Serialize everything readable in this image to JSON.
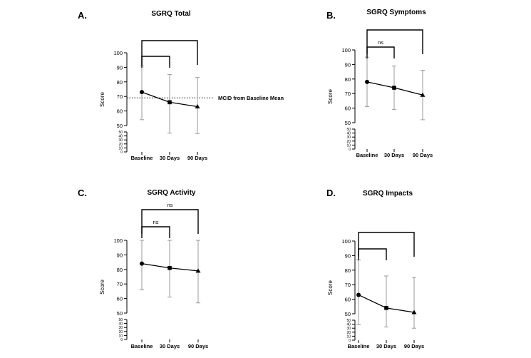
{
  "chart_data": [
    {
      "panel": "A.",
      "type": "line",
      "title": "SGRQ Total",
      "ylabel": "Score",
      "categories": [
        "Baseline",
        "30 Days",
        "90 Days"
      ],
      "values": [
        73,
        66,
        63
      ],
      "error_low": [
        54,
        47,
        46
      ],
      "error_high": [
        91,
        85,
        83
      ],
      "markers": [
        "circle",
        "square",
        "triangle"
      ],
      "ylim_upper": [
        50,
        100
      ],
      "yticks_upper": [
        "50",
        "60",
        "70",
        "80",
        "90",
        "100"
      ],
      "ylim_lower": [
        0,
        50
      ],
      "yticks_lower": [
        "0",
        "10",
        "20",
        "30",
        "40",
        "50"
      ],
      "brackets": [
        {
          "from": 0,
          "to": 1,
          "label": ""
        },
        {
          "from": 0,
          "to": 2,
          "label": ""
        }
      ],
      "reference_line": {
        "value": 69,
        "label": "MCID from Baseline Mean"
      }
    },
    {
      "panel": "B.",
      "type": "line",
      "title": "SGRQ Symptoms",
      "ylabel": "Score",
      "categories": [
        "Baseline",
        "30 Days",
        "90 Days"
      ],
      "values": [
        78,
        74,
        69
      ],
      "error_low": [
        61,
        59,
        52
      ],
      "error_high": [
        95,
        89,
        86
      ],
      "markers": [
        "circle",
        "square",
        "triangle"
      ],
      "ylim_upper": [
        50,
        100
      ],
      "yticks_upper": [
        "50",
        "60",
        "70",
        "80",
        "90",
        "100"
      ],
      "ylim_lower": [
        0,
        50
      ],
      "yticks_lower": [
        "0",
        "10",
        "20",
        "30",
        "40",
        "50"
      ],
      "brackets": [
        {
          "from": 0,
          "to": 1,
          "label": "ns"
        },
        {
          "from": 0,
          "to": 2,
          "label": ""
        }
      ]
    },
    {
      "panel": "C.",
      "type": "line",
      "title": "SGRQ Activity",
      "ylabel": "Score",
      "categories": [
        "Baseline",
        "30 Days",
        "90 Days"
      ],
      "values": [
        84,
        81,
        79
      ],
      "error_low": [
        66,
        61,
        57
      ],
      "error_high": [
        100,
        100,
        100
      ],
      "markers": [
        "circle",
        "square",
        "triangle"
      ],
      "ylim_upper": [
        50,
        100
      ],
      "yticks_upper": [
        "50",
        "60",
        "70",
        "80",
        "90",
        "100"
      ],
      "ylim_lower": [
        0,
        50
      ],
      "yticks_lower": [
        "0",
        "10",
        "20",
        "30",
        "40",
        "50"
      ],
      "brackets": [
        {
          "from": 0,
          "to": 1,
          "label": "ns"
        },
        {
          "from": 0,
          "to": 2,
          "label": "ns"
        }
      ]
    },
    {
      "panel": "D.",
      "type": "line",
      "title": "SGRQ Impacts",
      "ylabel": "Score",
      "categories": [
        "Baseline",
        "30 Days",
        "90 Days"
      ],
      "values": [
        63,
        54,
        51
      ],
      "error_low": [
        39,
        33,
        30
      ],
      "error_high": [
        87,
        76,
        75
      ],
      "markers": [
        "circle",
        "square",
        "triangle"
      ],
      "ylim_upper": [
        50,
        100
      ],
      "yticks_upper": [
        "50",
        "60",
        "70",
        "80",
        "90",
        "100"
      ],
      "ylim_lower": [
        0,
        50
      ],
      "yticks_lower": [
        "0",
        "10",
        "20",
        "30",
        "40",
        "50"
      ],
      "brackets": [
        {
          "from": 0,
          "to": 1,
          "label": ""
        },
        {
          "from": 0,
          "to": 2,
          "label": ""
        }
      ]
    }
  ]
}
